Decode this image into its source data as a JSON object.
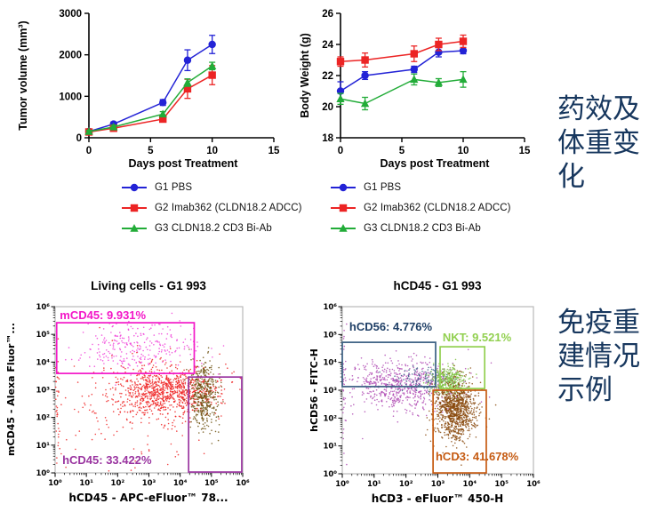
{
  "colors": {
    "g1_blue": "#2323d6",
    "g2_red": "#ec2424",
    "g3_green": "#22ac38",
    "side_text": "#17375e",
    "plot_border": "#b9b9b9"
  },
  "side_notes": [
    {
      "text": "药效及\n体重变\n化",
      "color": "#17375e"
    },
    {
      "text": "免疫重\n建情况\n示例",
      "color": "#17375e"
    }
  ],
  "legend": {
    "items": [
      {
        "label": "G1 PBS",
        "color": "#2323d6",
        "marker": "circle"
      },
      {
        "label": "G2 Imab362 (CLDN18.2 ADCC)",
        "color": "#ec2424",
        "marker": "square"
      },
      {
        "label": "G3 CLDN18.2 CD3 Bi-Ab",
        "color": "#22ac38",
        "marker": "triangle"
      }
    ]
  },
  "chart_data": [
    {
      "id": "tumor-volume",
      "type": "line",
      "title": "",
      "xlabel": "Days post Treatment",
      "ylabel": "Tumor volume (mm³)",
      "xlim": [
        0,
        15
      ],
      "xticks": [
        0,
        5,
        10,
        15
      ],
      "ylim": [
        0,
        3000
      ],
      "yticks": [
        0,
        1000,
        2000,
        3000
      ],
      "x": [
        0,
        2,
        6,
        8,
        10
      ],
      "series": [
        {
          "name": "G1 PBS",
          "marker": "circle",
          "color": "#2323d6",
          "values": [
            150,
            330,
            850,
            1870,
            2250
          ],
          "errors": [
            40,
            50,
            70,
            250,
            220
          ]
        },
        {
          "name": "G2 Imab362 (CLDN18.2 ADCC)",
          "marker": "square",
          "color": "#ec2424",
          "values": [
            140,
            230,
            450,
            1180,
            1510
          ],
          "errors": [
            30,
            40,
            60,
            230,
            230
          ]
        },
        {
          "name": "G3 CLDN18.2 CD3 Bi-Ab",
          "marker": "triangle",
          "color": "#22ac38",
          "values": [
            150,
            260,
            570,
            1330,
            1730
          ],
          "errors": [
            30,
            40,
            60,
            90,
            90
          ]
        }
      ]
    },
    {
      "id": "body-weight",
      "type": "line",
      "title": "",
      "xlabel": "Days post Treatment",
      "ylabel": "Body Weight (g)",
      "xlim": [
        0,
        15
      ],
      "xticks": [
        0,
        5,
        10,
        15
      ],
      "ylim": [
        18,
        26
      ],
      "yticks": [
        18,
        20,
        22,
        24,
        26
      ],
      "x": [
        0,
        2,
        6,
        8,
        10
      ],
      "series": [
        {
          "name": "G1 PBS",
          "marker": "circle",
          "color": "#2323d6",
          "values": [
            21.0,
            22.0,
            22.4,
            23.5,
            23.6
          ],
          "errors": [
            0.6,
            0.25,
            0.2,
            0.3,
            0.2
          ]
        },
        {
          "name": "G2 Imab362 (CLDN18.2 ADCC)",
          "marker": "square",
          "color": "#ec2424",
          "values": [
            22.9,
            23.0,
            23.4,
            24.0,
            24.2
          ],
          "errors": [
            0.3,
            0.45,
            0.5,
            0.4,
            0.4
          ]
        },
        {
          "name": "G3 CLDN18.2 CD3 Bi-Ab",
          "marker": "triangle",
          "color": "#22ac38",
          "values": [
            20.5,
            20.2,
            21.75,
            21.55,
            21.75
          ],
          "errors": [
            0.35,
            0.4,
            0.35,
            0.25,
            0.5
          ]
        }
      ]
    },
    {
      "id": "flow-living-cells",
      "type": "scatter",
      "title": "Living cells - G1 993",
      "xlabel": "hCD45 - APC-eFluor™ 78...",
      "ylabel": "mCD45 - Alexa Fluor™...",
      "x_tick_exponents": [
        0,
        1,
        2,
        3,
        4,
        5,
        6
      ],
      "y_tick_exponents": [
        0,
        1,
        2,
        3,
        4,
        5,
        6
      ],
      "gates": [
        {
          "label": "mCD45: 9.931%",
          "color": "#f318c8",
          "x0": 0.05,
          "x1": 4.45,
          "y0": 3.59,
          "y1": 5.42,
          "label_x": 0.15,
          "label_y": 5.55
        },
        {
          "label": "hCD45: 33.422%",
          "color": "#9a35a0",
          "x0": 4.27,
          "x1": 5.97,
          "y0": 0.03,
          "y1": 3.46,
          "label_x": 0.23,
          "label_y": 0.32
        }
      ],
      "clusters": [
        {
          "name": "mouse-cd45-pink",
          "color": "#f040d8",
          "cx": 2.6,
          "cy": 4.55,
          "sx": 1.0,
          "sy": 0.42,
          "n": 260
        },
        {
          "name": "main-red",
          "color": "#ee2222",
          "cx": 3.55,
          "cy": 2.95,
          "sx": 0.8,
          "sy": 0.42,
          "n": 850
        },
        {
          "name": "sparse-red",
          "color": "#ee2222",
          "cx": 2.9,
          "cy": 2.4,
          "sx": 1.3,
          "sy": 1.0,
          "n": 220
        },
        {
          "name": "edge-red",
          "color": "#ee2222",
          "cx": 0.05,
          "cy": 2.6,
          "sx": 0.05,
          "sy": 1.3,
          "n": 50
        },
        {
          "name": "human-cd45-dark",
          "color": "#6f5212",
          "cx": 4.75,
          "cy": 2.85,
          "sx": 0.22,
          "sy": 0.6,
          "n": 430
        }
      ]
    },
    {
      "id": "flow-hcd45",
      "type": "scatter",
      "title": "hCD45 - G1 993",
      "xlabel": "hCD3 - eFluor™ 450-H",
      "ylabel": "hCD56 - FITC-H",
      "x_tick_exponents": [
        0,
        1,
        2,
        3,
        4,
        5,
        6
      ],
      "y_tick_exponents": [
        0,
        1,
        2,
        3,
        4,
        5,
        6
      ],
      "gates": [
        {
          "label": "hCD56: 4.776%",
          "color": "#3a5f82",
          "label_color": "#1f3f66",
          "x0": 0.0,
          "x1": 2.93,
          "y0": 3.13,
          "y1": 4.72,
          "label_x": 0.22,
          "label_y": 5.14
        },
        {
          "label": "NKT: 9.521%",
          "color": "#92d050",
          "x0": 3.07,
          "x1": 4.47,
          "y0": 3.06,
          "y1": 4.56,
          "label_x": 3.15,
          "label_y": 4.76
        },
        {
          "label": "hCD3: 41.678%",
          "color": "#c55a11",
          "x0": 2.85,
          "x1": 4.52,
          "y0": 0.03,
          "y1": 3.0,
          "label_x": 2.93,
          "label_y": 0.48
        }
      ],
      "clusters": [
        {
          "name": "double-neg-purple",
          "color": "#b04cb4",
          "cx": 1.9,
          "cy": 3.15,
          "sx": 0.85,
          "sy": 0.45,
          "n": 650
        },
        {
          "name": "edge-purple",
          "color": "#b04cb4",
          "cx": 0.04,
          "cy": 2.9,
          "sx": 0.04,
          "sy": 1.2,
          "n": 60
        },
        {
          "name": "hcd56-navy",
          "color": "#3a5f88",
          "cx": 2.5,
          "cy": 3.4,
          "sx": 0.55,
          "sy": 0.22,
          "n": 110
        },
        {
          "name": "nkt-green",
          "color": "#7fc142",
          "cx": 3.35,
          "cy": 3.35,
          "sx": 0.3,
          "sy": 0.25,
          "n": 320
        },
        {
          "name": "hcd3-brown",
          "color": "#8a4a0e",
          "cx": 3.55,
          "cy": 2.3,
          "sx": 0.33,
          "sy": 0.5,
          "n": 1000
        }
      ]
    }
  ]
}
